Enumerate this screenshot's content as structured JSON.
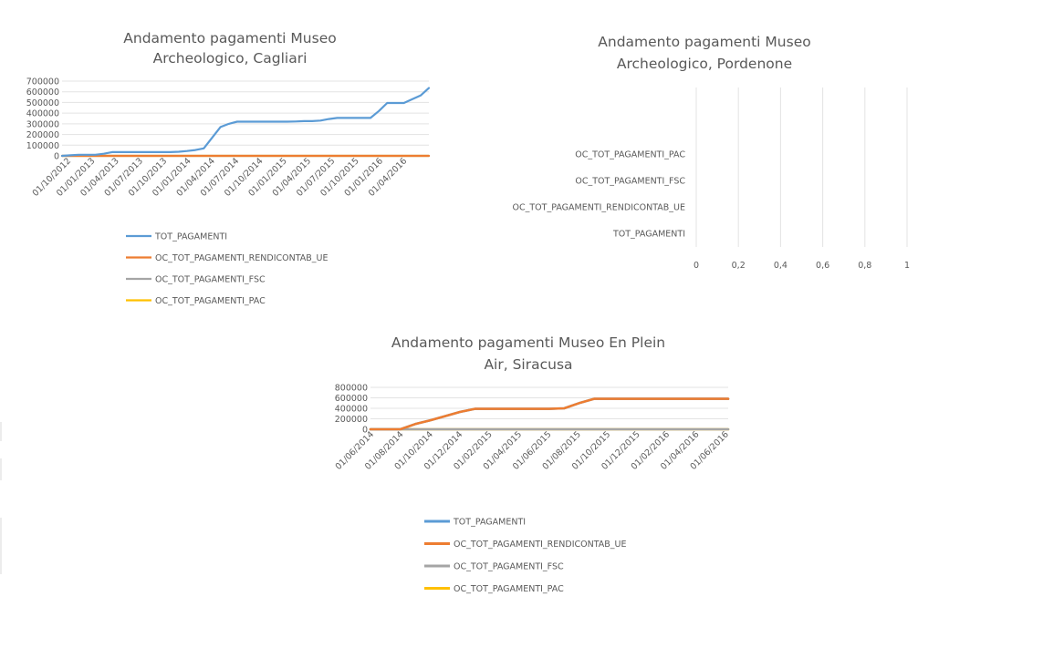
{
  "chart_data": [
    {
      "type": "line",
      "title_lines": [
        "Andamento pagamenti Museo",
        "Archeologico, Cagliari"
      ],
      "ylim": [
        0,
        700000
      ],
      "yticks": [
        0,
        100000,
        200000,
        300000,
        400000,
        500000,
        600000,
        700000
      ],
      "ytick_labels": [
        "0",
        "100000",
        "200000",
        "300000",
        "400000",
        "500000",
        "600000",
        "700000"
      ],
      "x_tick_labels": [
        "01/10/2012",
        "01/01/2013",
        "01/04/2013",
        "01/07/2013",
        "01/10/2013",
        "01/01/2014",
        "01/04/2014",
        "01/07/2014",
        "01/10/2014",
        "01/01/2015",
        "01/04/2015",
        "01/07/2015",
        "01/10/2015",
        "01/01/2016",
        "01/04/2016"
      ],
      "x": [
        "2012-10",
        "2012-11",
        "2012-12",
        "2013-01",
        "2013-02",
        "2013-03",
        "2013-04",
        "2013-05",
        "2013-06",
        "2013-07",
        "2013-08",
        "2013-09",
        "2013-10",
        "2013-11",
        "2013-12",
        "2014-01",
        "2014-02",
        "2014-03",
        "2014-04",
        "2014-05",
        "2014-06",
        "2014-07",
        "2014-08",
        "2014-09",
        "2014-10",
        "2014-11",
        "2014-12",
        "2015-01",
        "2015-02",
        "2015-03",
        "2015-04",
        "2015-05",
        "2015-06",
        "2015-07",
        "2015-08",
        "2015-09",
        "2015-10",
        "2015-11",
        "2015-12",
        "2016-01",
        "2016-02",
        "2016-03",
        "2016-04",
        "2016-05",
        "2016-06"
      ],
      "series": [
        {
          "name": "TOT_PAGAMENTI",
          "color": "#5b9bd5",
          "values": [
            0,
            5000,
            10000,
            10000,
            10000,
            20000,
            35000,
            35000,
            35000,
            35000,
            35000,
            35000,
            35000,
            35000,
            38000,
            45000,
            55000,
            70000,
            170000,
            270000,
            300000,
            320000,
            320000,
            320000,
            320000,
            320000,
            320000,
            320000,
            322000,
            325000,
            325000,
            330000,
            345000,
            355000,
            355000,
            355000,
            355000,
            355000,
            420000,
            495000,
            495000,
            495000,
            530000,
            565000,
            635000
          ]
        },
        {
          "name": "OC_TOT_PAGAMENTI_RENDICONTAB_UE",
          "color": "#ed7d31",
          "values": [
            0,
            0,
            0,
            0,
            0,
            0,
            0,
            0,
            0,
            0,
            0,
            0,
            0,
            0,
            0,
            0,
            0,
            0,
            0,
            0,
            0,
            0,
            0,
            0,
            0,
            0,
            0,
            0,
            0,
            0,
            0,
            0,
            0,
            0,
            0,
            0,
            0,
            0,
            0,
            0,
            0,
            0,
            0,
            0,
            0
          ]
        },
        {
          "name": "OC_TOT_PAGAMENTI_FSC",
          "color": "#a5a5a5",
          "values": [
            0,
            0,
            0,
            0,
            0,
            0,
            0,
            0,
            0,
            0,
            0,
            0,
            0,
            0,
            0,
            0,
            0,
            0,
            0,
            0,
            0,
            0,
            0,
            0,
            0,
            0,
            0,
            0,
            0,
            0,
            0,
            0,
            0,
            0,
            0,
            0,
            0,
            0,
            0,
            0,
            0,
            0,
            0,
            0,
            0
          ]
        },
        {
          "name": "OC_TOT_PAGAMENTI_PAC",
          "color": "#ffc000",
          "values": [
            0,
            0,
            0,
            0,
            0,
            0,
            0,
            0,
            0,
            0,
            0,
            0,
            0,
            0,
            0,
            0,
            0,
            0,
            0,
            0,
            0,
            0,
            0,
            0,
            0,
            0,
            0,
            0,
            0,
            0,
            0,
            0,
            0,
            0,
            0,
            0,
            0,
            0,
            0,
            0,
            0,
            0,
            0,
            0,
            0
          ]
        }
      ],
      "legend": "bottom",
      "grid": true
    },
    {
      "type": "bar",
      "orientation": "horizontal",
      "title_lines": [
        "Andamento pagamenti Museo",
        "Archeologico, Pordenone"
      ],
      "categories": [
        "OC_TOT_PAGAMENTI_PAC",
        "OC_TOT_PAGAMENTI_FSC",
        "OC_TOT_PAGAMENTI_RENDICONTAB_UE",
        "TOT_PAGAMENTI"
      ],
      "values": [
        0,
        0,
        0,
        0
      ],
      "xlim": [
        0,
        1
      ],
      "xticks": [
        0,
        0.2,
        0.4,
        0.6,
        0.8,
        1
      ],
      "xtick_labels": [
        "0",
        "0,2",
        "0,4",
        "0,6",
        "0,8",
        "1"
      ],
      "grid": true
    },
    {
      "type": "line",
      "title_lines": [
        "Andamento pagamenti Museo En Plein",
        "Air, Siracusa"
      ],
      "ylim": [
        0,
        800000
      ],
      "yticks": [
        0,
        200000,
        400000,
        600000,
        800000
      ],
      "ytick_labels": [
        "0",
        "200000",
        "400000",
        "600000",
        "800000"
      ],
      "x_tick_labels": [
        "01/06/2014",
        "01/08/2014",
        "01/10/2014",
        "01/12/2014",
        "01/02/2015",
        "01/04/2015",
        "01/06/2015",
        "01/08/2015",
        "01/10/2015",
        "01/12/2015",
        "01/02/2016",
        "01/04/2016",
        "01/06/2016"
      ],
      "x": [
        "2014-06",
        "2014-07",
        "2014-08",
        "2014-09",
        "2014-10",
        "2014-11",
        "2014-12",
        "2015-01",
        "2015-02",
        "2015-03",
        "2015-04",
        "2015-05",
        "2015-06",
        "2015-07",
        "2015-08",
        "2015-09",
        "2015-10",
        "2015-11",
        "2015-12",
        "2016-01",
        "2016-02",
        "2016-03",
        "2016-04",
        "2016-05",
        "2016-06"
      ],
      "series": [
        {
          "name": "TOT_PAGAMENTI",
          "color": "#5b9bd5",
          "values": [
            0,
            0,
            0,
            100000,
            170000,
            250000,
            330000,
            390000,
            390000,
            390000,
            390000,
            390000,
            390000,
            400000,
            500000,
            580000,
            580000,
            580000,
            580000,
            580000,
            580000,
            580000,
            580000,
            580000,
            580000
          ]
        },
        {
          "name": "OC_TOT_PAGAMENTI_RENDICONTAB_UE",
          "color": "#ed7d31",
          "values": [
            0,
            0,
            0,
            100000,
            170000,
            250000,
            330000,
            390000,
            390000,
            390000,
            390000,
            390000,
            390000,
            400000,
            500000,
            580000,
            580000,
            580000,
            580000,
            580000,
            580000,
            580000,
            580000,
            580000,
            580000
          ]
        },
        {
          "name": "OC_TOT_PAGAMENTI_FSC",
          "color": "#a5a5a5",
          "values": [
            0,
            0,
            0,
            0,
            0,
            0,
            0,
            0,
            0,
            0,
            0,
            0,
            0,
            0,
            0,
            0,
            0,
            0,
            0,
            0,
            0,
            0,
            0,
            0,
            0
          ]
        },
        {
          "name": "OC_TOT_PAGAMENTI_PAC",
          "color": "#ffc000",
          "values": [
            0,
            0,
            0,
            0,
            0,
            0,
            0,
            0,
            0,
            0,
            0,
            0,
            0,
            0,
            0,
            0,
            0,
            0,
            0,
            0,
            0,
            0,
            0,
            0,
            0
          ]
        }
      ],
      "legend": "bottom",
      "grid": true
    }
  ]
}
